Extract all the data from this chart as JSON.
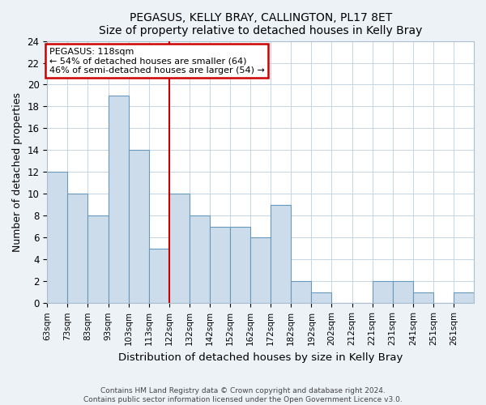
{
  "title": "PEGASUS, KELLY BRAY, CALLINGTON, PL17 8ET",
  "subtitle": "Size of property relative to detached houses in Kelly Bray",
  "xlabel": "Distribution of detached houses by size in Kelly Bray",
  "ylabel": "Number of detached properties",
  "bar_labels": [
    "63sqm",
    "73sqm",
    "83sqm",
    "93sqm",
    "103sqm",
    "113sqm",
    "122sqm",
    "132sqm",
    "142sqm",
    "152sqm",
    "162sqm",
    "172sqm",
    "182sqm",
    "192sqm",
    "202sqm",
    "212sqm",
    "221sqm",
    "231sqm",
    "241sqm",
    "251sqm",
    "261sqm"
  ],
  "bar_values": [
    12,
    10,
    8,
    19,
    14,
    5,
    10,
    8,
    7,
    7,
    6,
    9,
    2,
    1,
    0,
    0,
    2,
    2,
    1,
    0,
    1
  ],
  "bar_color": "#cddceb",
  "bar_edge_color": "#6699bb",
  "vline_color": "#cc0000",
  "annotation_title": "PEGASUS: 118sqm",
  "annotation_line1": "← 54% of detached houses are smaller (64)",
  "annotation_line2": "46% of semi-detached houses are larger (54) →",
  "annotation_box_color": "#ffffff",
  "annotation_box_edge": "#cc0000",
  "ylim": [
    0,
    24
  ],
  "yticks": [
    0,
    2,
    4,
    6,
    8,
    10,
    12,
    14,
    16,
    18,
    20,
    22,
    24
  ],
  "footer_line1": "Contains HM Land Registry data © Crown copyright and database right 2024.",
  "footer_line2": "Contains public sector information licensed under the Open Government Licence v3.0.",
  "bg_color": "#edf2f7",
  "plot_bg_color": "#ffffff",
  "grid_color": "#c5d5e5"
}
